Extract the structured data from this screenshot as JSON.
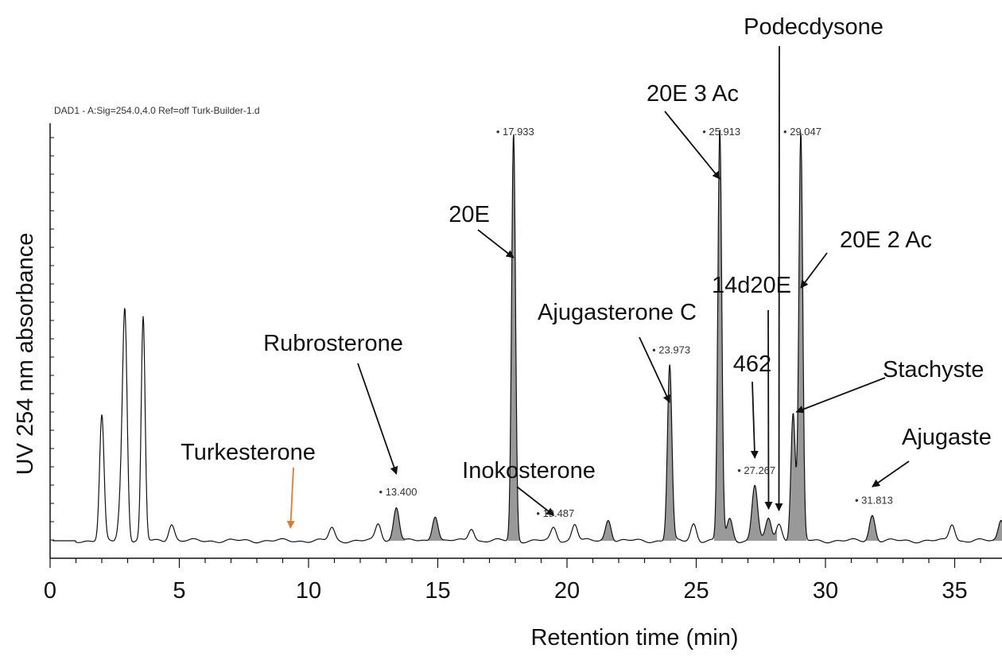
{
  "chart_data": {
    "type": "line",
    "header": "DAD1 - A:Sig=254.0,4.0  Ref=off Turk-Builder-1.d",
    "xlabel": "Retention time (min)",
    "ylabel": "UV 254 nm absorbance",
    "xlim": [
      0,
      37
    ],
    "x_ticks": [
      0,
      5,
      10,
      15,
      20,
      25,
      30,
      35
    ],
    "grid": false,
    "line_color": "#111111",
    "fill_color": "#999999",
    "peaks": [
      {
        "rt": 2.0,
        "height": 0.29
      },
      {
        "rt": 2.8,
        "height": 0.15
      },
      {
        "rt": 2.9,
        "height": 0.44
      },
      {
        "rt": 3.6,
        "height": 0.52
      },
      {
        "rt": 4.7,
        "height": 0.04
      },
      {
        "rt": 10.9,
        "height": 0.03
      },
      {
        "rt": 12.7,
        "height": 0.04
      },
      {
        "rt": 13.4,
        "height": 0.08
      },
      {
        "rt": 14.9,
        "height": 0.06
      },
      {
        "rt": 16.3,
        "height": 0.03
      },
      {
        "rt": 17.933,
        "height": 0.95
      },
      {
        "rt": 19.487,
        "height": 0.03
      },
      {
        "rt": 20.3,
        "height": 0.04
      },
      {
        "rt": 21.6,
        "height": 0.05
      },
      {
        "rt": 23.973,
        "height": 0.41
      },
      {
        "rt": 24.9,
        "height": 0.04
      },
      {
        "rt": 25.913,
        "height": 0.96
      },
      {
        "rt": 26.3,
        "height": 0.05
      },
      {
        "rt": 27.267,
        "height": 0.13
      },
      {
        "rt": 27.8,
        "height": 0.05
      },
      {
        "rt": 28.2,
        "height": 0.04
      },
      {
        "rt": 28.75,
        "height": 0.3
      },
      {
        "rt": 29.047,
        "height": 0.95
      },
      {
        "rt": 31.813,
        "height": 0.06
      },
      {
        "rt": 34.9,
        "height": 0.04
      },
      {
        "rt": 36.8,
        "height": 0.05
      }
    ],
    "rt_labels": [
      "13.400",
      "17.933",
      "19.487",
      "23.973",
      "25.913",
      "27.267",
      "29.047",
      "31.813"
    ],
    "annotations": [
      {
        "text": "Podecdysone",
        "target_rt": 28.2,
        "color": "#111111"
      },
      {
        "text": "20E  3  Ac",
        "target_rt": 25.913,
        "color": "#111111"
      },
      {
        "text": "20E",
        "target_rt": 17.933,
        "color": "#111111"
      },
      {
        "text": "20E  2  Ac",
        "target_rt": 29.047,
        "color": "#111111"
      },
      {
        "text": "14d20E",
        "target_rt": 27.8,
        "color": "#111111"
      },
      {
        "text": "Ajugasterone  C",
        "target_rt": 23.973,
        "color": "#111111"
      },
      {
        "text": "Rubrosterone",
        "target_rt": 13.4,
        "color": "#111111"
      },
      {
        "text": "462",
        "target_rt": 27.267,
        "color": "#111111"
      },
      {
        "text": "Stachyste",
        "target_rt": 28.75,
        "color": "#111111"
      },
      {
        "text": "Turkesterone",
        "target_rt": 9.3,
        "color": "#cc2222",
        "arrow_color": "#e07b2e"
      },
      {
        "text": "Inokosterone",
        "target_rt": 19.487,
        "color": "#111111"
      },
      {
        "text": "Ajugaste",
        "target_rt": 31.813,
        "color": "#111111"
      }
    ]
  }
}
